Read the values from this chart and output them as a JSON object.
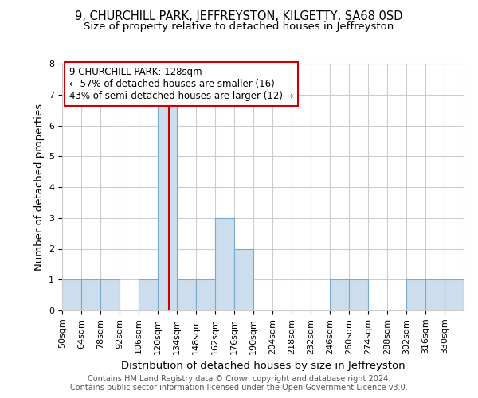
{
  "title": "9, CHURCHILL PARK, JEFFREYSTON, KILGETTY, SA68 0SD",
  "subtitle": "Size of property relative to detached houses in Jeffreyston",
  "xlabel": "Distribution of detached houses by size in Jeffreyston",
  "ylabel": "Number of detached properties",
  "footer_line1": "Contains HM Land Registry data © Crown copyright and database right 2024.",
  "footer_line2": "Contains public sector information licensed under the Open Government Licence v3.0.",
  "bins": [
    "50sqm",
    "64sqm",
    "78sqm",
    "92sqm",
    "106sqm",
    "120sqm",
    "134sqm",
    "148sqm",
    "162sqm",
    "176sqm",
    "190sqm",
    "204sqm",
    "218sqm",
    "232sqm",
    "246sqm",
    "260sqm",
    "274sqm",
    "288sqm",
    "302sqm",
    "316sqm",
    "330sqm"
  ],
  "values": [
    1,
    1,
    1,
    0,
    1,
    7,
    1,
    1,
    3,
    2,
    0,
    0,
    0,
    0,
    1,
    1,
    0,
    0,
    1,
    1,
    1
  ],
  "bin_edges": [
    50,
    64,
    78,
    92,
    106,
    120,
    134,
    148,
    162,
    176,
    190,
    204,
    218,
    232,
    246,
    260,
    274,
    288,
    302,
    316,
    330,
    344
  ],
  "bar_color": "#ccdded",
  "bar_edge_color": "#7aaac8",
  "subject_value": 128,
  "subject_line_color": "#cc0000",
  "annotation_text_line1": "9 CHURCHILL PARK: 128sqm",
  "annotation_text_line2": "← 57% of detached houses are smaller (16)",
  "annotation_text_line3": "43% of semi-detached houses are larger (12) →",
  "annotation_box_edge_color": "#cc0000",
  "annotation_box_face_color": "#ffffff",
  "ylim": [
    0,
    8
  ],
  "yticks": [
    0,
    1,
    2,
    3,
    4,
    5,
    6,
    7,
    8
  ],
  "grid_color": "#cccccc",
  "title_fontsize": 10.5,
  "subtitle_fontsize": 9.5,
  "axis_label_fontsize": 9.5,
  "tick_fontsize": 8,
  "footer_fontsize": 7,
  "bg_color": "#ffffff"
}
